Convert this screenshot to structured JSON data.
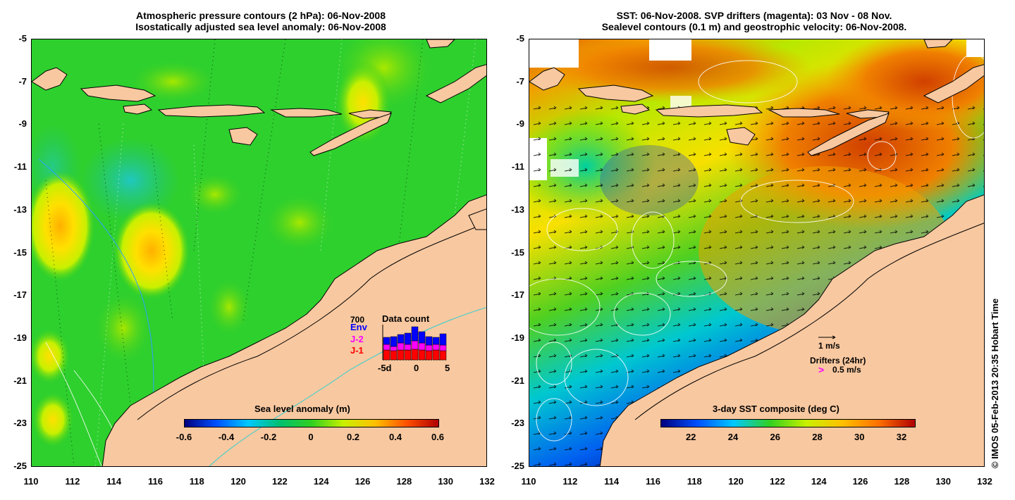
{
  "left_panel": {
    "title_line1": "Atmospheric pressure contours (2 hPa): 06-Nov-2008",
    "title_line2": "Isostatically adjusted sea level anomaly: 06-Nov-2008",
    "colorbar_title": "Sea level anomaly (m)",
    "colorbar_ticks": [
      "-0.6",
      "-0.4",
      "-0.2",
      "0",
      "0.2",
      "0.4",
      "0.6"
    ],
    "colorbar_colors": [
      "#00007f",
      "#0050ff",
      "#00c8ff",
      "#00c070",
      "#30d020",
      "#c8f000",
      "#ffc000",
      "#ff5000",
      "#b00000"
    ],
    "inset": {
      "title": "Data count",
      "scale_label": "700",
      "legend": [
        {
          "label": "Env",
          "color": "#0000ff"
        },
        {
          "label": "J-2",
          "color": "#ff00ff"
        },
        {
          "label": "J-1",
          "color": "#ff0000"
        }
      ],
      "x_ticks": [
        "-5d",
        "0",
        "5"
      ]
    }
  },
  "right_panel": {
    "title_line1": "SST: 06-Nov-2008. SVP drifters (magenta): 03 Nov - 08 Nov.",
    "title_line2": "Sealevel contours (0.1 m) and geostrophic velocity: 06-Nov-2008.",
    "colorbar_title": "3-day SST composite (deg C)",
    "colorbar_ticks": [
      "22",
      "24",
      "26",
      "28",
      "30",
      "32"
    ],
    "colorbar_colors": [
      "#00007f",
      "#0050ff",
      "#00c8ff",
      "#30d020",
      "#c8f000",
      "#ffc000",
      "#ff7000",
      "#b00000"
    ],
    "scale_arrow_label": "1 m/s",
    "drifters_label": "Drifters (24hr)",
    "drifter_speed_label": "0.5 m/s",
    "drifter_marker": ">"
  },
  "axes": {
    "y_ticks": [
      "-5",
      "-7",
      "-9",
      "-11",
      "-13",
      "-15",
      "-17",
      "-19",
      "-21",
      "-23",
      "-25"
    ],
    "x_ticks": [
      "110",
      "112",
      "114",
      "116",
      "118",
      "120",
      "122",
      "124",
      "126",
      "128",
      "130",
      "132"
    ]
  },
  "credit": "© IMOS 05-Feb-2013 20:35 Hobart Time",
  "colors": {
    "land": "#f8c8a0",
    "ocean_left": "#2ed02e",
    "ocean_right": "#f0a000"
  }
}
